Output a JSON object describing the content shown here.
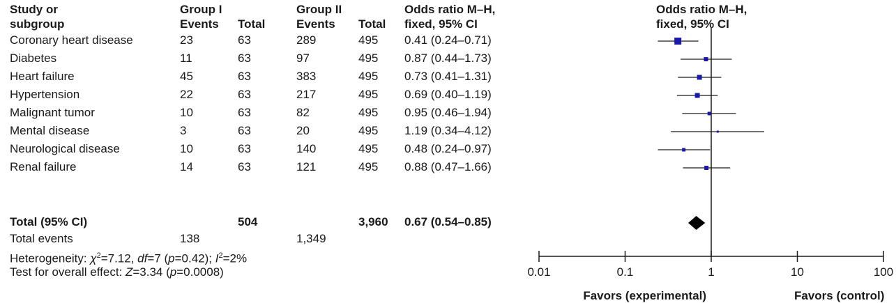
{
  "headers": {
    "study_l1": "Study or",
    "study_l2": "subgroup",
    "g1_l1": "Group I",
    "g1_events": "Events",
    "g1_total": "Total",
    "g2_l1": "Group II",
    "g2_events": "Events",
    "g2_total": "Total",
    "or_l1": "Odds ratio M–H,",
    "or_l2": "fixed, 95% CI",
    "plot_l1": "Odds ratio M–H,",
    "plot_l2": "fixed, 95% CI"
  },
  "rows": [
    {
      "study": "Coronary heart disease",
      "e1": "23",
      "t1": "63",
      "e2": "289",
      "t2": "495",
      "or_text": "0.41 (0.24–0.71)"
    },
    {
      "study": "Diabetes",
      "e1": "11",
      "t1": "63",
      "e2": "97",
      "t2": "495",
      "or_text": "0.87 (0.44–1.73)"
    },
    {
      "study": "Heart failure",
      "e1": "45",
      "t1": "63",
      "e2": "383",
      "t2": "495",
      "or_text": "0.73 (0.41–1.31)"
    },
    {
      "study": "Hypertension",
      "e1": "22",
      "t1": "63",
      "e2": "217",
      "t2": "495",
      "or_text": "0.69 (0.40–1.19)"
    },
    {
      "study": "Malignant tumor",
      "e1": "10",
      "t1": "63",
      "e2": "82",
      "t2": "495",
      "or_text": "0.95 (0.46–1.94)"
    },
    {
      "study": "Mental disease",
      "e1": "3",
      "t1": "63",
      "e2": "20",
      "t2": "495",
      "or_text": "1.19 (0.34–4.12)"
    },
    {
      "study": "Neurological disease",
      "e1": "10",
      "t1": "63",
      "e2": "140",
      "t2": "495",
      "or_text": "0.48 (0.24–0.97)"
    },
    {
      "study": "Renal failure",
      "e1": "14",
      "t1": "63",
      "e2": "121",
      "t2": "495",
      "or_text": "0.88 (0.47–1.66)"
    }
  ],
  "total": {
    "label": "Total (95% CI)",
    "t1": "504",
    "t2": "3,960",
    "or_text": "0.67 (0.54–0.85)"
  },
  "events": {
    "label": "Total events",
    "e1": "138",
    "e2": "1,349"
  },
  "heterogeneity": {
    "prefix": "Heterogeneity: ",
    "chi": "χ",
    "chi_sup": "2",
    "chi_val": "=7.12, ",
    "df": "df",
    "df_val": "=7 (",
    "p1": "p",
    "p1_val": "=0.42); ",
    "i": "I",
    "i_sup": "2",
    "i_val": "=2%"
  },
  "overall": {
    "prefix": "Test for overall effect: ",
    "z": "Z",
    "z_val": "=3.34 (",
    "p": "p",
    "p_val": "=0.0008)"
  },
  "chart_data": {
    "type": "forest",
    "x_scale": "log",
    "xlim": [
      0.01,
      100
    ],
    "ticks": [
      0.01,
      0.1,
      1,
      10,
      100
    ],
    "tick_labels": [
      "0.01",
      "0.1",
      "1",
      "10",
      "100"
    ],
    "reference_line": 1,
    "favors_left": "Favors (experimental)",
    "favors_right": "Favors (control)",
    "studies": [
      {
        "or": 0.41,
        "lo": 0.24,
        "hi": 0.71
      },
      {
        "or": 0.87,
        "lo": 0.44,
        "hi": 1.73
      },
      {
        "or": 0.73,
        "lo": 0.41,
        "hi": 1.31
      },
      {
        "or": 0.69,
        "lo": 0.4,
        "hi": 1.19
      },
      {
        "or": 0.95,
        "lo": 0.46,
        "hi": 1.94
      },
      {
        "or": 1.19,
        "lo": 0.34,
        "hi": 4.12
      },
      {
        "or": 0.48,
        "lo": 0.24,
        "hi": 0.97
      },
      {
        "or": 0.88,
        "lo": 0.47,
        "hi": 1.66
      }
    ],
    "pooled": {
      "or": 0.67,
      "lo": 0.54,
      "hi": 0.85
    },
    "colors": {
      "marker": "#1a1aa6",
      "line": "#1a1a1a",
      "diamond": "#000000"
    }
  }
}
